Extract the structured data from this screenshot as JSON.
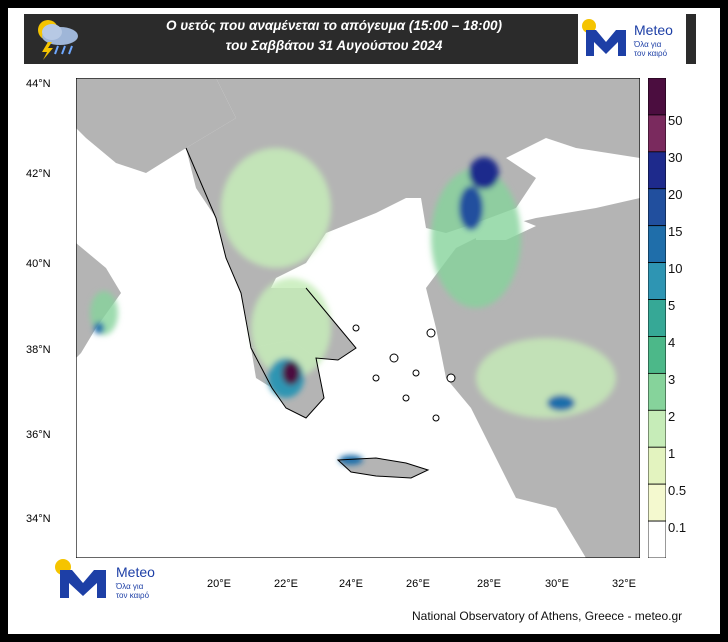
{
  "header": {
    "title_line1": "Ο υετός που αναμένεται το απόγευμα (15:00 – 18:00)",
    "title_line2": "του Σαββάτου 31 Αυγούστου 2024",
    "weather_icon": "rain-thunder-icon"
  },
  "logo": {
    "brand": "Meteo",
    "tagline_line1": "Όλα για",
    "tagline_line2": "τον καιρό"
  },
  "axes": {
    "lat_labels": [
      "44°N",
      "42°N",
      "40°N",
      "38°N",
      "36°N",
      "34°N"
    ],
    "lon_labels": [
      "20°E",
      "22°E",
      "24°E",
      "26°E",
      "28°E",
      "30°E",
      "32°E"
    ]
  },
  "legend": {
    "labels": [
      "50",
      "30",
      "20",
      "15",
      "10",
      "5",
      "4",
      "3",
      "2",
      "1",
      "0.5",
      "0.1"
    ],
    "colors": [
      "#4b0d3f",
      "#7a2a5e",
      "#1e2a8c",
      "#214f9e",
      "#1f6eaa",
      "#2e95b3",
      "#36a896",
      "#4cb889",
      "#86d39b",
      "#c6ecb8",
      "#e3f3bf",
      "#f4f9cf",
      "#ffffff"
    ]
  },
  "credit": "National Observatory of Athens, Greece - meteo.gr",
  "colors": {
    "land": "#b4b4b4",
    "sea": "#ffffff",
    "frame": "#000000",
    "header_bg": "#2b2b2b",
    "brand_blue": "#1d3fa6",
    "brand_yellow": "#f5c400"
  }
}
